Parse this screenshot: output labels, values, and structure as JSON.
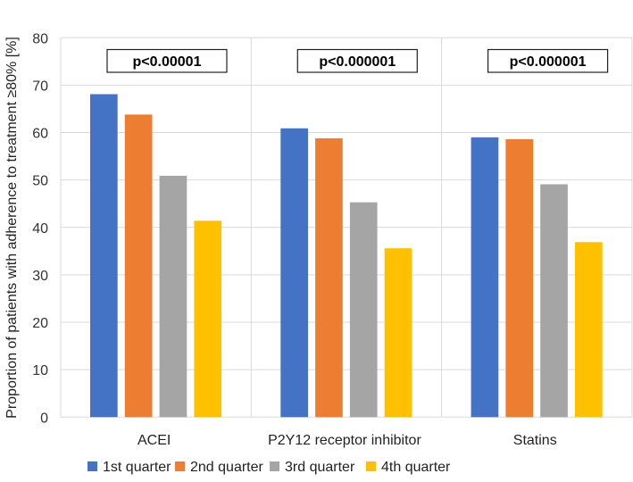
{
  "chart_data": {
    "type": "bar",
    "title": "",
    "xlabel": "",
    "ylabel": "Proportion of patients with adherence to treatment ≥80%  [%]",
    "ylim": [
      0,
      80
    ],
    "yticks": [
      0,
      10,
      20,
      30,
      40,
      50,
      60,
      70,
      80
    ],
    "grid": true,
    "legend_position": "bottom",
    "categories": [
      "ACEI",
      "P2Y12 receptor inhibitor",
      "Statins"
    ],
    "annotations": [
      "p<0.00001",
      "p<0.000001",
      "p<0.000001"
    ],
    "series": [
      {
        "name": "1st quarter",
        "color": "#4472C4",
        "values": [
          68.1,
          60.9,
          59.0
        ]
      },
      {
        "name": "2nd quarter",
        "color": "#ED7D31",
        "values": [
          63.8,
          58.8,
          58.6
        ]
      },
      {
        "name": "3rd quarter",
        "color": "#A5A5A5",
        "values": [
          50.9,
          45.3,
          49.1
        ]
      },
      {
        "name": "4th quarter",
        "color": "#FFC000",
        "values": [
          41.4,
          35.6,
          36.9
        ]
      }
    ]
  }
}
